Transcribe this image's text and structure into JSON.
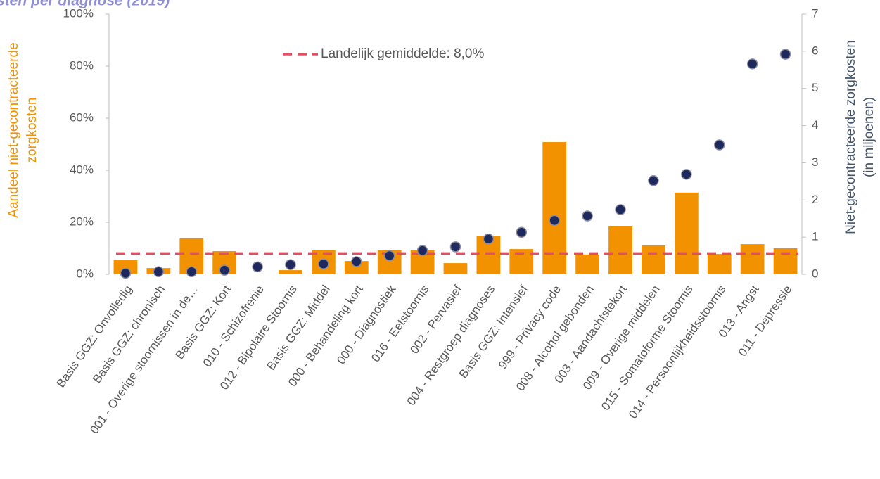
{
  "chart_data": {
    "type": "bar",
    "title": "sten per diagnose (2019)",
    "categories": [
      "Basis GGZ: Onvolledig",
      "Basis GGZ: chronisch",
      "001 - Overige stoornissen in de…",
      "Basis GGZ: Kort",
      "010 - Schizofrenie",
      "012 - Bipolaire Stoornis",
      "Basis GGZ: Middel",
      "000 - Behandeling kort",
      "000 - Diagnostiek",
      "016 - Eetstoornis",
      "002 - Pervasief",
      "004 - Restgroep diagnoses",
      "Basis GGZ: Intensief",
      "999 - Privacy code",
      "008 - Alcohol gebonden",
      "003 - Aandachtstekort",
      "009 - Overige middelen",
      "015 - Somatoforme Stoornis",
      "014 - Persoonlijkheidsstoornis",
      "013 - Angst",
      "011 - Depressie"
    ],
    "series": [
      {
        "type": "bar",
        "color": "#f39200",
        "axis": "y",
        "values": [
          5.4,
          2.4,
          13.8,
          8.9,
          0,
          1.6,
          9.2,
          5.1,
          9.2,
          9.2,
          4.3,
          14.6,
          9.7,
          50.8,
          7.6,
          18.4,
          11.1,
          31.4,
          7.8,
          11.6,
          10.0
        ]
      },
      {
        "type": "scatter",
        "color": "#1e2a5e",
        "axis": "y2",
        "values": [
          0.03,
          0.07,
          0.07,
          0.11,
          0.2,
          0.26,
          0.28,
          0.34,
          0.5,
          0.64,
          0.74,
          0.95,
          1.13,
          1.45,
          1.57,
          1.74,
          2.52,
          2.69,
          3.48,
          5.66,
          5.92
        ]
      }
    ],
    "average": {
      "label": "Landelijk gemiddelde: 8,0%",
      "value": 8.0,
      "color": "#e05060"
    },
    "ylabel": [
      "Aandeel niet-gecontracteerde",
      "zorgkosten"
    ],
    "y2label": [
      "Niet-gecontracteerde zorgkosten",
      "(in miljoenen)"
    ],
    "ylim": [
      0,
      100
    ],
    "yticks": [
      {
        "value": 0,
        "label": "0%"
      },
      {
        "value": 20,
        "label": "20%"
      },
      {
        "value": 40,
        "label": "40%"
      },
      {
        "value": 60,
        "label": "60%"
      },
      {
        "value": 80,
        "label": "80%"
      },
      {
        "value": 100,
        "label": "100%"
      }
    ],
    "y2lim": [
      0,
      7
    ],
    "y2ticks": [
      0,
      1,
      2,
      3,
      4,
      5,
      6,
      7
    ]
  }
}
